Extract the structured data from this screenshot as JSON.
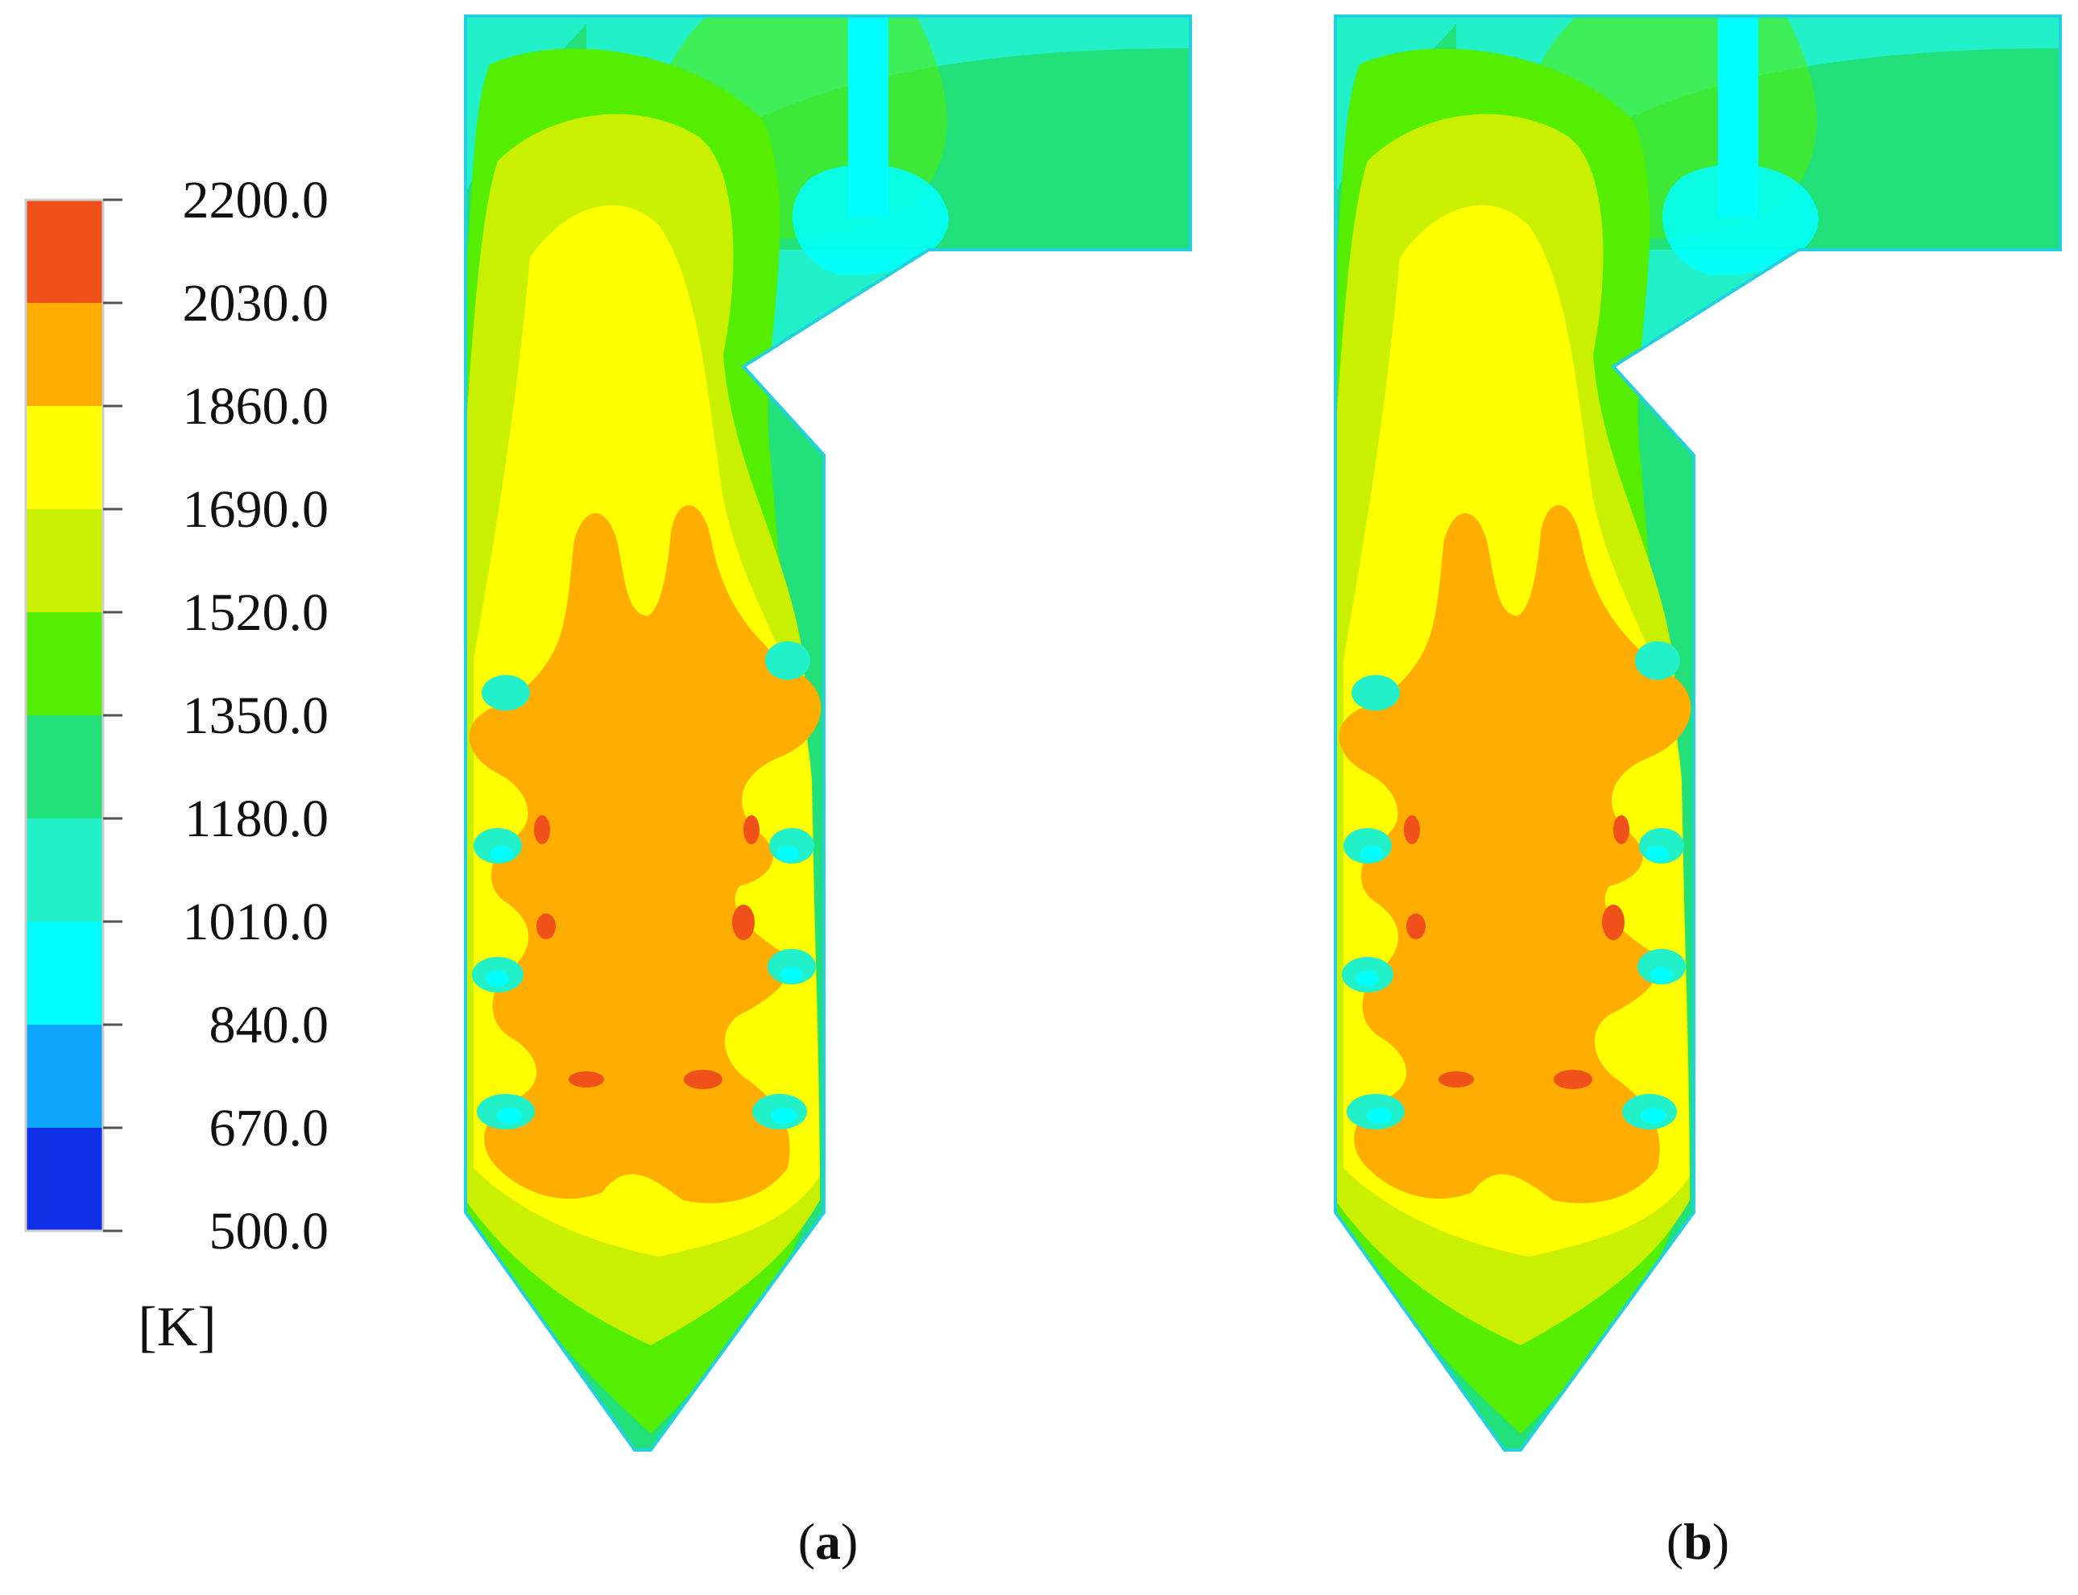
{
  "colorbar": {
    "unit": "[K]",
    "ticks": [
      "2200.0",
      "2030.0",
      "1860.0",
      "1690.0",
      "1520.0",
      "1350.0",
      "1180.0",
      "1010.0",
      "840.0",
      "670.0",
      "500.0"
    ],
    "bands": [
      {
        "color": "#f0501a"
      },
      {
        "color": "#ffad00"
      },
      {
        "color": "#ffff00"
      },
      {
        "color": "#c8f000"
      },
      {
        "color": "#55ee00"
      },
      {
        "color": "#22e07a"
      },
      {
        "color": "#22f0c8"
      },
      {
        "color": "#00ffff"
      },
      {
        "color": "#10a8ff"
      },
      {
        "color": "#1030e8"
      }
    ]
  },
  "panels": [
    {
      "letter": "a",
      "open": "(",
      "close": ")"
    },
    {
      "letter": "b",
      "open": "(",
      "close": ")"
    }
  ],
  "colors": {
    "red": "#f0501a",
    "orange": "#ffad00",
    "yellow": "#ffff00",
    "lime": "#c8f000",
    "green": "#55ee00",
    "mint": "#22e07a",
    "aqua": "#22f0c8",
    "cyan": "#00ffff",
    "lightblue": "#10a8ff",
    "blue": "#1030e8"
  }
}
